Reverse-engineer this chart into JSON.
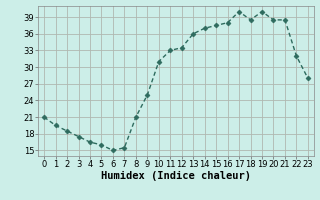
{
  "x": [
    0,
    1,
    2,
    3,
    4,
    5,
    6,
    7,
    8,
    9,
    10,
    11,
    12,
    13,
    14,
    15,
    16,
    17,
    18,
    19,
    20,
    21,
    22,
    23
  ],
  "y": [
    21,
    19.5,
    18.5,
    17.5,
    16.5,
    16,
    15,
    15.5,
    21,
    25,
    31,
    33,
    33.5,
    36,
    37,
    37.5,
    38,
    40,
    38.5,
    40,
    38.5,
    38.5,
    32,
    28
  ],
  "line_color": "#2e6b5e",
  "marker": "D",
  "marker_size": 2.5,
  "bg_color": "#cceee8",
  "grid_color": "#b0b8b0",
  "xlabel": "Humidex (Indice chaleur)",
  "xlim": [
    -0.5,
    23.5
  ],
  "ylim": [
    14,
    41
  ],
  "yticks": [
    15,
    18,
    21,
    24,
    27,
    30,
    33,
    36,
    39
  ],
  "xticks": [
    0,
    1,
    2,
    3,
    4,
    5,
    6,
    7,
    8,
    9,
    10,
    11,
    12,
    13,
    14,
    15,
    16,
    17,
    18,
    19,
    20,
    21,
    22,
    23
  ],
  "tick_fontsize": 6,
  "xlabel_fontsize": 7.5,
  "label_color": "#000000",
  "line_width": 1.0
}
